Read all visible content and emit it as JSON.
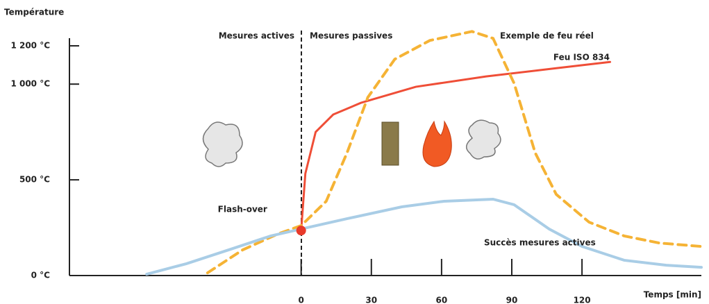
{
  "chart_data": {
    "type": "line",
    "y_label": "Température",
    "x_label": "Temps [min]",
    "annotations": [
      "Mesures actives",
      "Mesures passives"
    ],
    "xlim": [
      -99,
      171
    ],
    "ylim": [
      0,
      1240
    ],
    "xticks": [
      0,
      30,
      60,
      90,
      120
    ],
    "yticks": [
      {
        "value": 0,
        "label": "0 °C"
      },
      {
        "value": 500,
        "label": "500 °C"
      },
      {
        "value": 1000,
        "label": "1 000 °C"
      },
      {
        "value": 1200,
        "label": "1 200 °C"
      }
    ],
    "series": [
      {
        "name": "Feu ISO 834",
        "color": "#ef4e37",
        "x": [
          0,
          1.8,
          6.2,
          13.7,
          25.5,
          49,
          79,
          109,
          132
        ],
        "values": [
          235,
          533,
          750,
          841,
          902,
          986,
          1040,
          1083,
          1116
        ]
      },
      {
        "name": "Exemple de feu réel",
        "color": "#f5b335",
        "x": [
          -40,
          -25,
          -10,
          0,
          10.7,
          19.6,
          28.5,
          40,
          55,
          73,
          82,
          91,
          100,
          109,
          123,
          138,
          153,
          171
        ],
        "values": [
          14,
          134,
          217,
          261,
          388,
          641,
          931,
          1130,
          1228,
          1275,
          1239,
          1004,
          641,
          424,
          279,
          207,
          170,
          152
        ]
      },
      {
        "name": "Succès mesures actives",
        "color": "#a9cde6",
        "x": [
          -66,
          -49,
          -31,
          -13,
          0,
          19.6,
          43,
          61,
          82,
          91,
          106,
          120,
          138,
          156,
          171
        ],
        "values": [
          7,
          62,
          134,
          207,
          243,
          297,
          359,
          388,
          399,
          370,
          243,
          152,
          80,
          54,
          43
        ]
      }
    ],
    "flashover": {
      "label": "Flash-over",
      "x": 0,
      "value": 235,
      "color": "#e8392a"
    }
  }
}
